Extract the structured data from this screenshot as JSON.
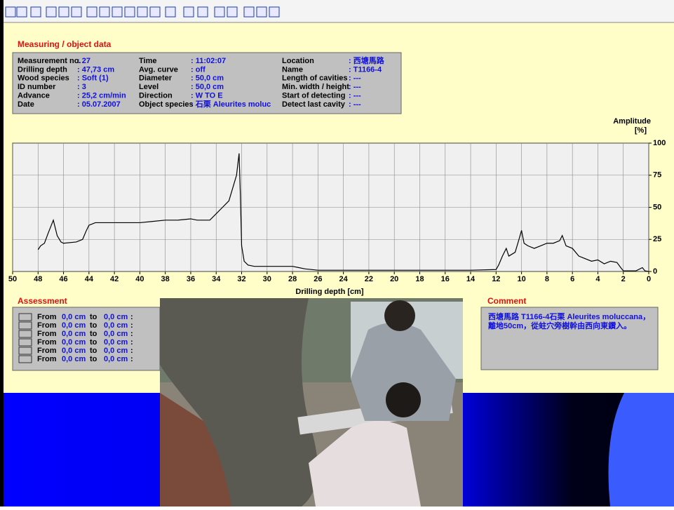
{
  "measuring": {
    "title": "Measuring / object data",
    "columns": [
      [
        [
          "Measurement no.",
          ": 27"
        ],
        [
          "Drilling depth",
          ": 47,73 cm"
        ],
        [
          "Wood species",
          ": Soft (1)"
        ],
        [
          "ID number",
          ": 3"
        ],
        [
          "Advance",
          ": 25,2 cm/min"
        ],
        [
          "Date",
          ": 05.07.2007"
        ]
      ],
      [
        [
          "Time",
          ": 11:02:07"
        ],
        [
          "Avg. curve",
          ": off"
        ],
        [
          "Diameter",
          ": 50,0 cm"
        ],
        [
          "Level",
          ": 50,0 cm"
        ],
        [
          "Direction",
          ": W TO E"
        ],
        [
          "Object species",
          ": 石栗 Aleurites moluc"
        ]
      ],
      [
        [
          "Location",
          ": 西塘馬路"
        ],
        [
          "Name",
          ": T1166-4"
        ],
        [
          "Length of cavities",
          ": ---"
        ],
        [
          "Min. width / height",
          ": ---"
        ],
        [
          "Start of detecting",
          ": ---"
        ],
        [
          "Detect last cavity",
          ": ---"
        ]
      ]
    ]
  },
  "chart": {
    "type": "line",
    "x_label": "Drilling depth [cm]",
    "y_label": [
      "Amplitude",
      "[%]"
    ],
    "color": "#000000",
    "x": [
      48,
      47.8,
      47.5,
      47.2,
      47,
      46.8,
      46.5,
      46.2,
      46,
      45,
      44.5,
      44.2,
      44,
      43.5,
      43,
      42,
      41,
      40,
      39,
      38,
      37,
      36,
      35.5,
      35,
      34.5,
      34,
      33.5,
      33,
      32.7,
      32.4,
      32.2,
      32.1,
      32,
      31.8,
      31.5,
      31,
      30,
      29,
      28,
      27.5,
      27,
      26,
      24,
      22,
      20,
      18,
      16,
      14,
      12,
      11.8,
      11.5,
      11.2,
      11,
      10.5,
      10.2,
      10,
      9.8,
      9.5,
      9,
      8.5,
      8,
      7.5,
      7,
      6.8,
      6.5,
      6,
      5.5,
      5,
      4.5,
      4,
      3.5,
      3,
      2.5,
      2.2,
      2,
      1.5,
      1,
      0.5,
      0.3,
      0
    ],
    "values": [
      17,
      20,
      22,
      30,
      35,
      40,
      28,
      23,
      22,
      23,
      25,
      32,
      36,
      38,
      38,
      38,
      38,
      38,
      39,
      40,
      40,
      41,
      40,
      40,
      40,
      45,
      50,
      55,
      65,
      75,
      92,
      60,
      20,
      8,
      5,
      4,
      4,
      4,
      4,
      3,
      2,
      1,
      1,
      1,
      1,
      1,
      1,
      1,
      1.5,
      5,
      12,
      18,
      12,
      15,
      25,
      32,
      22,
      20,
      18,
      20,
      22,
      22,
      24,
      28,
      20,
      18,
      12,
      10,
      8,
      9,
      6,
      8,
      7,
      3,
      0.5,
      0.5,
      0.5,
      3,
      0.5,
      0
    ],
    "xlim": [
      50,
      0
    ],
    "ylim": [
      0,
      100
    ],
    "xticks": [
      50,
      48,
      46,
      44,
      42,
      40,
      38,
      36,
      34,
      32,
      30,
      28,
      26,
      24,
      22,
      20,
      18,
      16,
      14,
      12,
      10,
      8,
      6,
      4,
      2,
      0
    ],
    "yticks": [
      0,
      25,
      50,
      75,
      100
    ],
    "grid": true
  },
  "assessment": {
    "title": "Assessment",
    "rows": [
      [
        "From",
        "0,0 cm",
        "to",
        "0,0 cm",
        ":"
      ],
      [
        "From",
        "0,0 cm",
        "to",
        "0,0 cm",
        ":"
      ],
      [
        "From",
        "0,0 cm",
        "to",
        "0,0 cm",
        ":"
      ],
      [
        "From",
        "0,0 cm",
        "to",
        "0,0 cm",
        ":"
      ],
      [
        "From",
        "0,0 cm",
        "to",
        "0,0 cm",
        ":"
      ],
      [
        "From",
        "0,0 cm",
        "to",
        "0,0 cm",
        ":"
      ]
    ]
  },
  "comment": {
    "title": "Comment",
    "lines": [
      "西塘馬路 T1166-4石栗 Aleurites moluccana，",
      "離地50cm，從蛀穴旁樹幹由西向東鑽入。"
    ]
  }
}
